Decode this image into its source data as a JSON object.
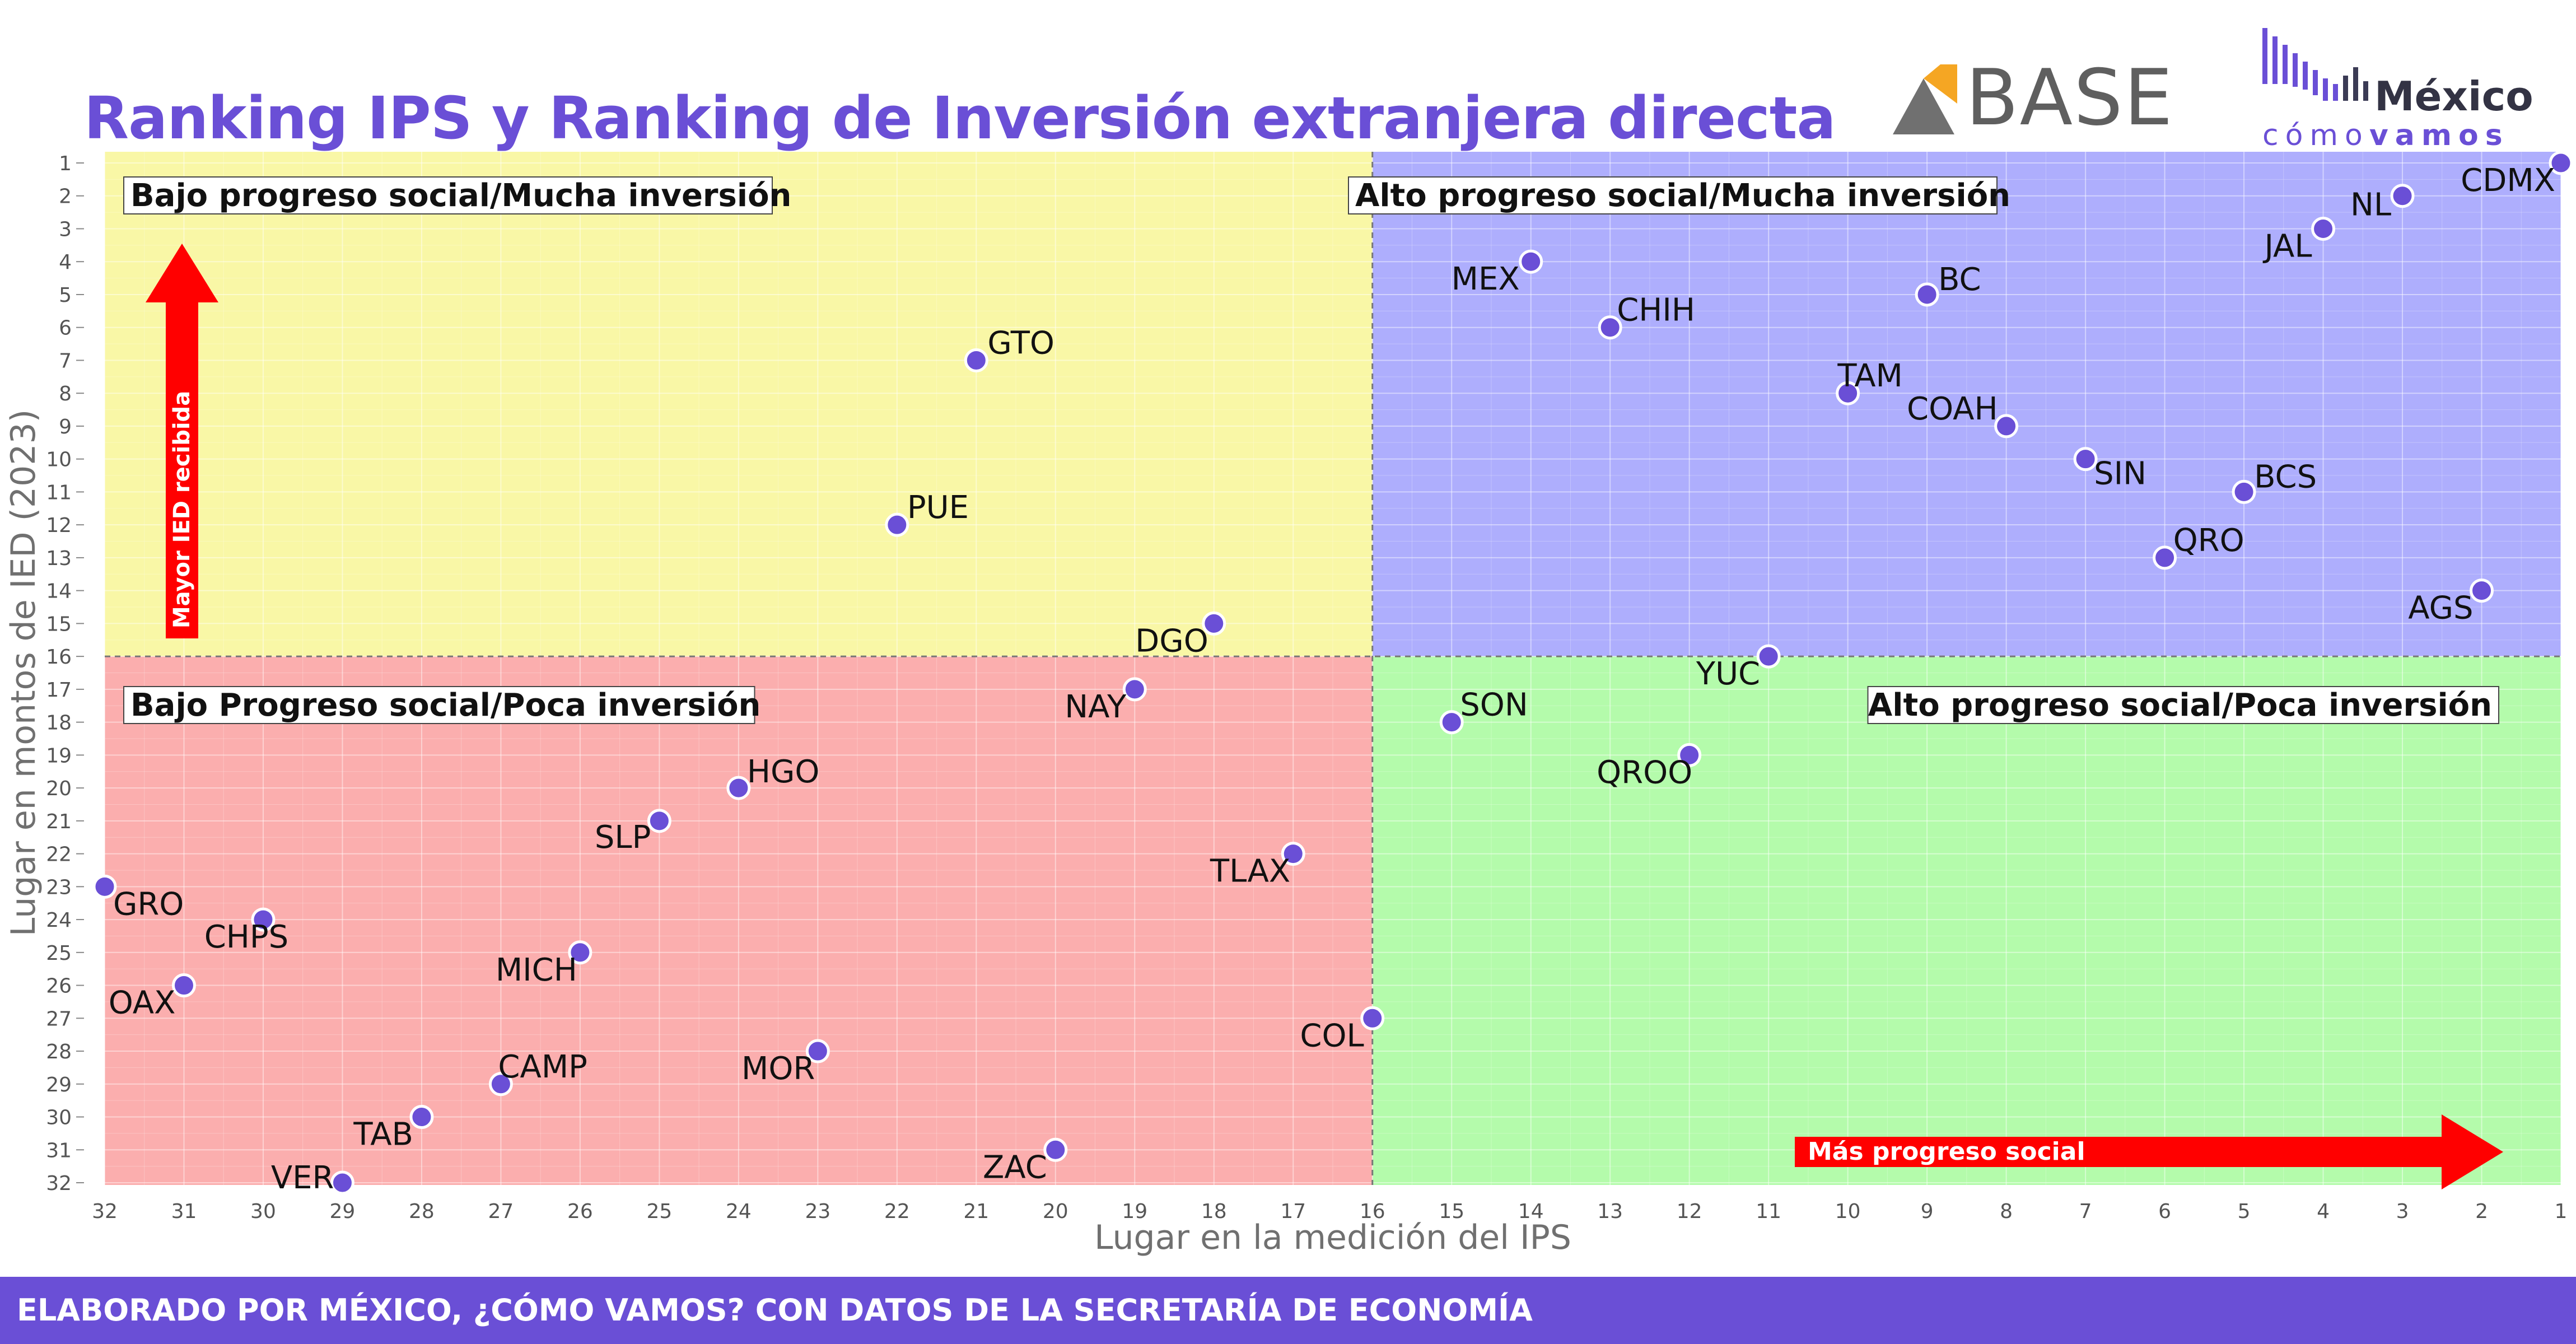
{
  "title": "Ranking IPS y Ranking de Inversión extranjera directa",
  "logos": {
    "base": "BASE",
    "mexico": "México",
    "como_vamos_1": "cómo",
    "como_vamos_2": "vamos"
  },
  "footer": "ELABORADO POR MÉXICO, ¿CÓMO VAMOS? CON DATOS DE LA SECRETARÍA DE ECONOMÍA",
  "colors": {
    "accent": "#6a4fd6",
    "point": "#6a4fd6",
    "q_top_left": "#f9f7a6",
    "q_top_right": "#aeaefd",
    "q_bottom_left": "#fbaeae",
    "q_bottom_right": "#b4fbab",
    "arrow": "#ff0000"
  },
  "chart_data": {
    "type": "scatter",
    "title": "Ranking IPS y Ranking de Inversión extranjera directa",
    "xlabel": "Lugar en la medición del IPS",
    "ylabel": "Lugar en montos de IED (2023)",
    "x_reversed": true,
    "y_reversed": true,
    "xlim": [
      32,
      1
    ],
    "ylim": [
      32,
      1
    ],
    "divider_x": 16,
    "divider_y": 16,
    "quadrants": {
      "top_left": "Bajo progreso social/Mucha inversión",
      "top_right": "Alto progreso social/Mucha inversión",
      "bottom_left": "Bajo Progreso social/Poca inversión",
      "bottom_right": "Alto progreso social/Poca inversión"
    },
    "arrows": {
      "vertical": "Mayor IED recibida",
      "horizontal": "Más progreso social"
    },
    "points": [
      {
        "label": "CDMX",
        "x": 1,
        "y": 1
      },
      {
        "label": "NL",
        "x": 3,
        "y": 2
      },
      {
        "label": "JAL",
        "x": 4,
        "y": 3
      },
      {
        "label": "MEX",
        "x": 14,
        "y": 4
      },
      {
        "label": "BC",
        "x": 9,
        "y": 5
      },
      {
        "label": "CHIH",
        "x": 13,
        "y": 6
      },
      {
        "label": "GTO",
        "x": 21,
        "y": 7
      },
      {
        "label": "TAM",
        "x": 10,
        "y": 8
      },
      {
        "label": "COAH",
        "x": 8,
        "y": 9
      },
      {
        "label": "SIN",
        "x": 7,
        "y": 10
      },
      {
        "label": "BCS",
        "x": 5,
        "y": 11
      },
      {
        "label": "PUE",
        "x": 22,
        "y": 12
      },
      {
        "label": "QRO",
        "x": 6,
        "y": 13
      },
      {
        "label": "AGS",
        "x": 2,
        "y": 14
      },
      {
        "label": "DGO",
        "x": 18,
        "y": 15
      },
      {
        "label": "YUC",
        "x": 11,
        "y": 16
      },
      {
        "label": "NAY",
        "x": 19,
        "y": 17
      },
      {
        "label": "SON",
        "x": 15,
        "y": 18
      },
      {
        "label": "QROO",
        "x": 12,
        "y": 19
      },
      {
        "label": "HGO",
        "x": 24,
        "y": 20
      },
      {
        "label": "SLP",
        "x": 25,
        "y": 21
      },
      {
        "label": "TLAX",
        "x": 17,
        "y": 22
      },
      {
        "label": "GRO",
        "x": 32,
        "y": 23
      },
      {
        "label": "CHPS",
        "x": 30,
        "y": 24
      },
      {
        "label": "MICH",
        "x": 26,
        "y": 25
      },
      {
        "label": "OAX",
        "x": 31,
        "y": 26
      },
      {
        "label": "COL",
        "x": 16,
        "y": 27
      },
      {
        "label": "MOR",
        "x": 23,
        "y": 28
      },
      {
        "label": "CAMP",
        "x": 27,
        "y": 29
      },
      {
        "label": "TAB",
        "x": 28,
        "y": 30
      },
      {
        "label": "ZAC",
        "x": 20,
        "y": 31
      },
      {
        "label": "VER",
        "x": 29,
        "y": 32
      }
    ],
    "x_ticks": [
      32,
      31,
      30,
      29,
      28,
      27,
      26,
      25,
      24,
      23,
      22,
      21,
      20,
      19,
      18,
      17,
      16,
      15,
      14,
      13,
      12,
      11,
      10,
      9,
      8,
      7,
      6,
      5,
      4,
      3,
      2,
      1
    ],
    "y_ticks": [
      1,
      2,
      3,
      4,
      5,
      6,
      7,
      8,
      9,
      10,
      11,
      12,
      13,
      14,
      15,
      16,
      17,
      18,
      19,
      20,
      21,
      22,
      23,
      24,
      25,
      26,
      27,
      28,
      29,
      30,
      31,
      32
    ]
  }
}
